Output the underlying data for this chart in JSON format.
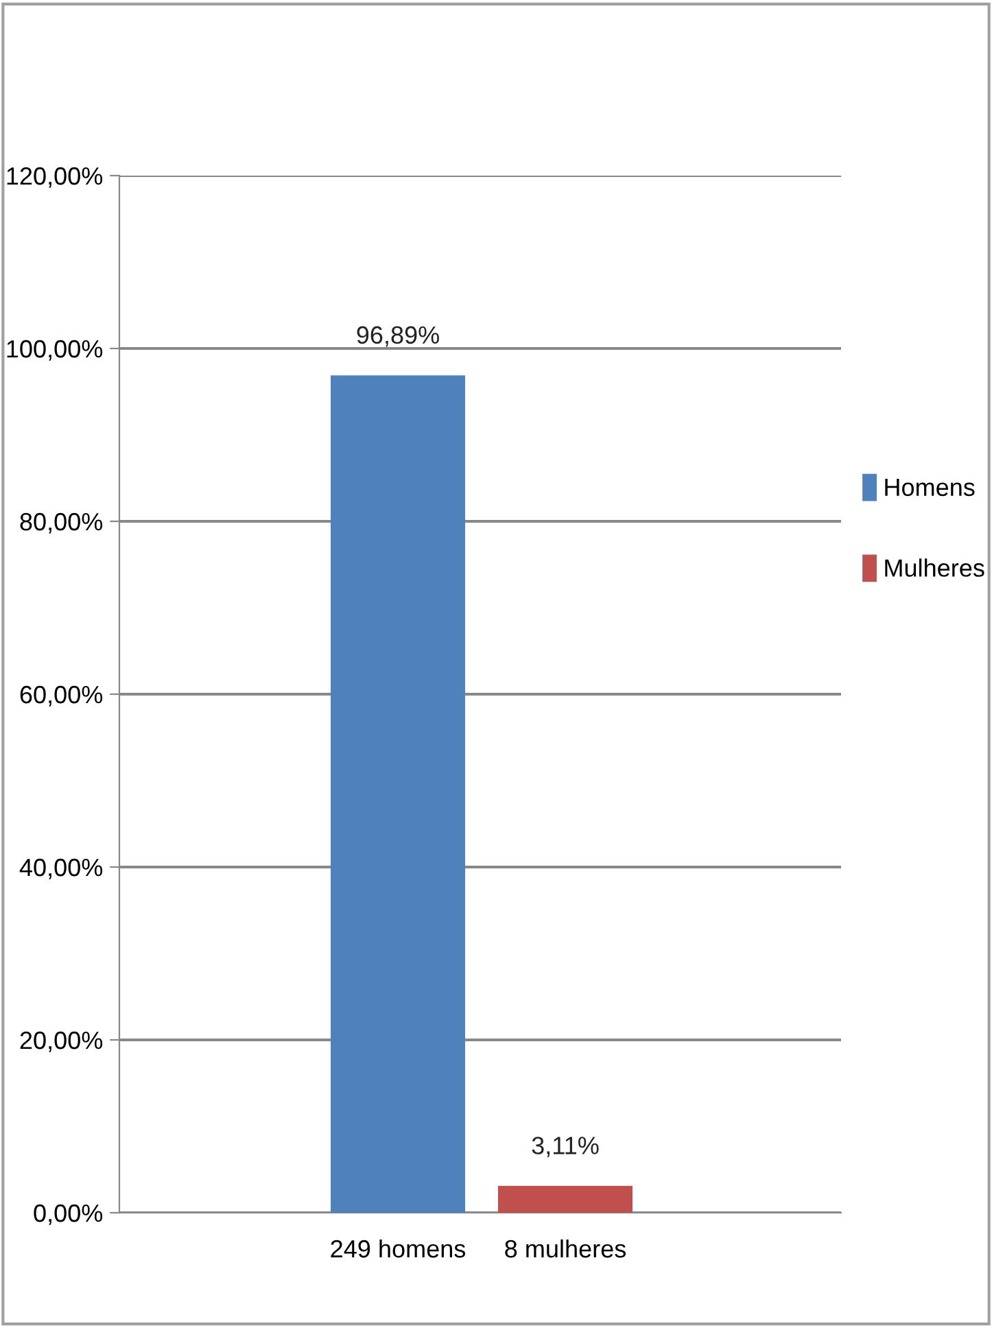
{
  "chart_data": {
    "type": "bar",
    "categories": [
      "249 homens",
      "8 mulheres"
    ],
    "series": [
      {
        "name": "Homens",
        "color": "#4f81bd",
        "values": [
          96.89,
          null
        ]
      },
      {
        "name": "Mulheres",
        "color": "#c0504d",
        "values": [
          null,
          3.11
        ]
      }
    ],
    "value_labels": [
      [
        "96,89%",
        null
      ],
      [
        null,
        "3,11%"
      ]
    ],
    "ylim": [
      0,
      120
    ],
    "yticks": [
      {
        "value": 0,
        "label": "0,00%"
      },
      {
        "value": 20,
        "label": "20,00%"
      },
      {
        "value": 40,
        "label": "40,00%"
      },
      {
        "value": 60,
        "label": "60,00%"
      },
      {
        "value": 80,
        "label": "80,00%"
      },
      {
        "value": 100,
        "label": "100,00%"
      },
      {
        "value": 120,
        "label": "120,00%"
      }
    ],
    "grid": "y",
    "legend": "right"
  }
}
